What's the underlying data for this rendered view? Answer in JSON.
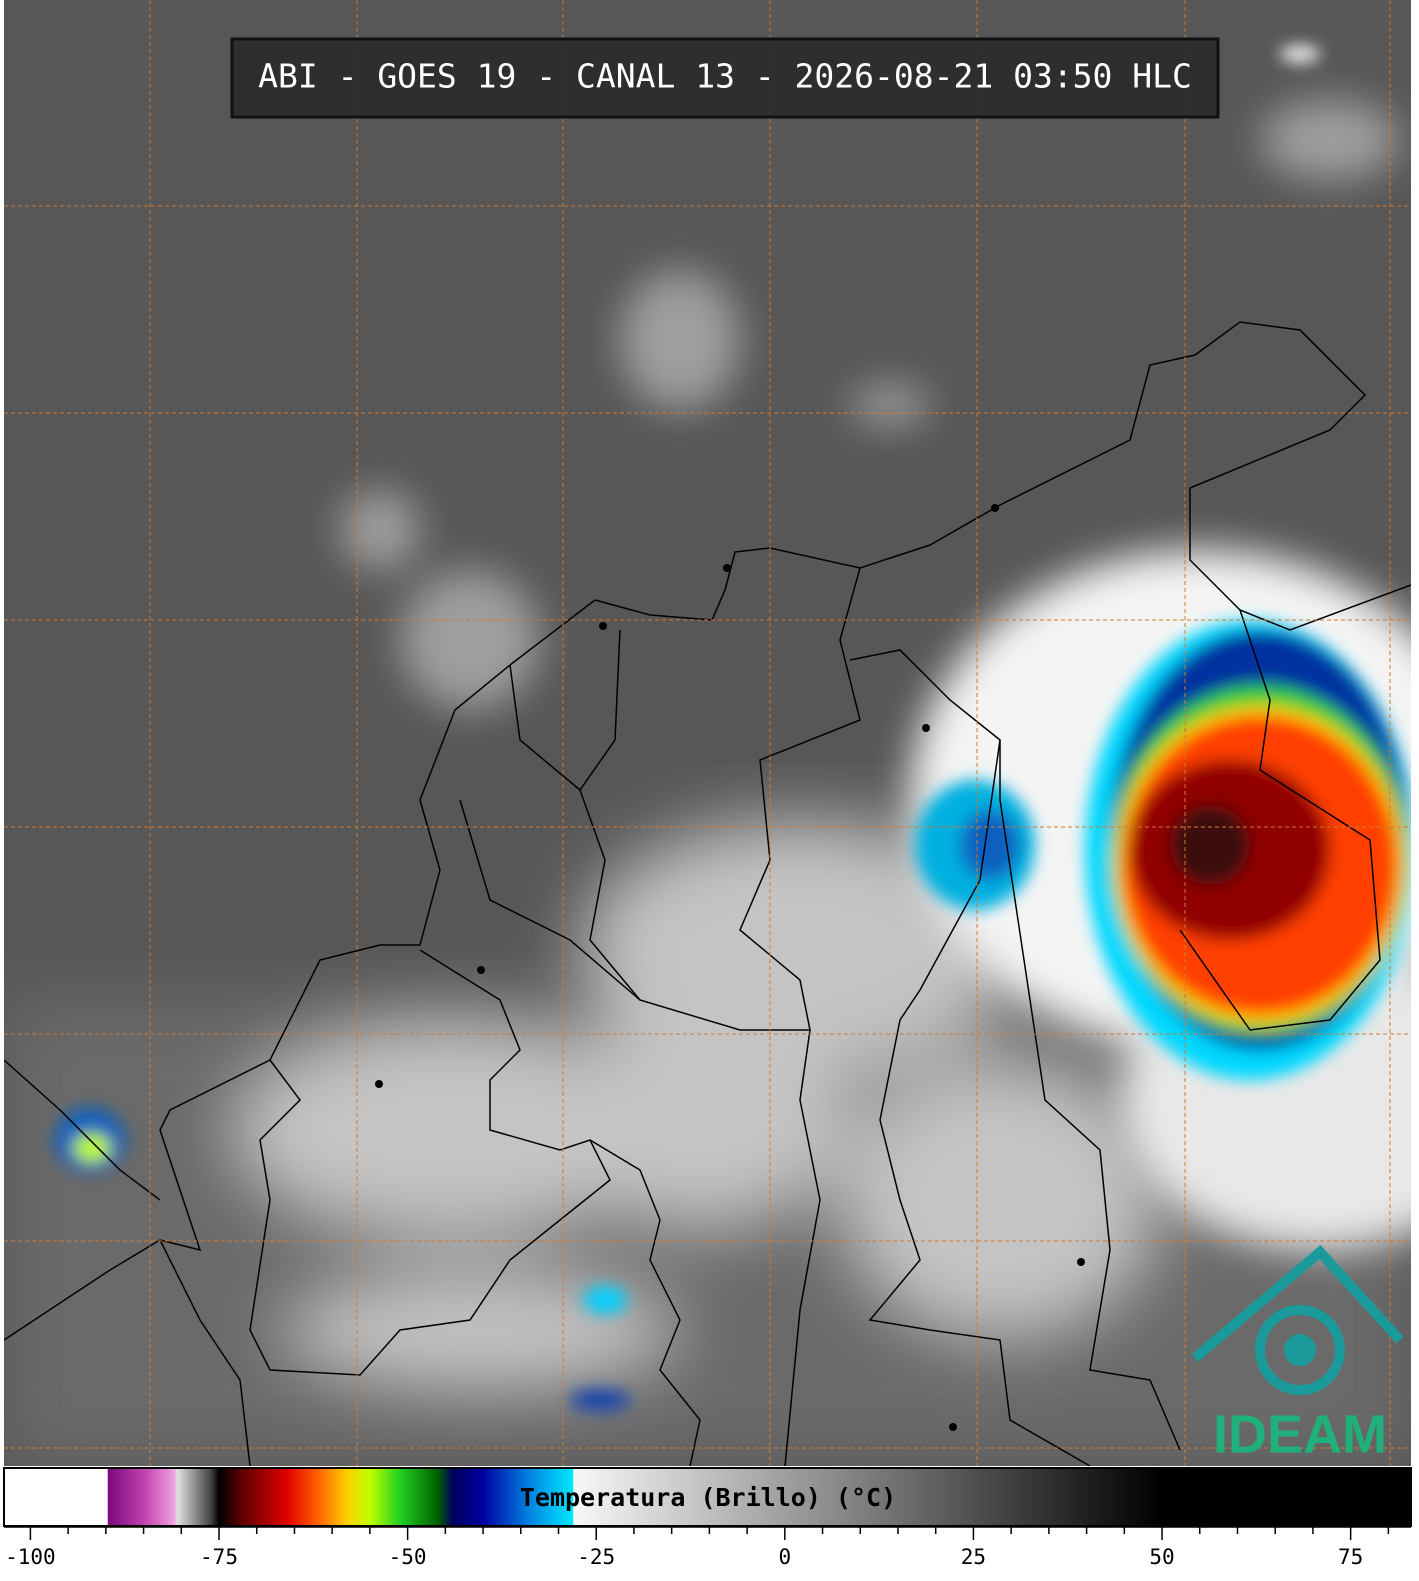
{
  "header": {
    "title": "ABI - GOES 19 - CANAL 13 - 2026-08-21 03:50 HLC"
  },
  "colorbar": {
    "label": "Temperatura (Brillo) (°C)",
    "lim": [
      -103.5,
      83
    ],
    "ticks": [
      -100,
      -75,
      -50,
      -25,
      0,
      25,
      50,
      75
    ],
    "minor_ticks": [
      -95,
      -90,
      -85,
      -80,
      -70,
      -65,
      -60,
      -55,
      -45,
      -40,
      -35,
      -30,
      -20,
      -15,
      -10,
      -5,
      5,
      10,
      15,
      20,
      30,
      35,
      40,
      45,
      55,
      60,
      65,
      70,
      80
    ],
    "colormap": [
      [
        -103.5,
        "#ffffff"
      ],
      [
        -89.8,
        "#ffffff"
      ],
      [
        -89.7,
        "#7a0a7a"
      ],
      [
        -85,
        "#c040b0"
      ],
      [
        -81,
        "#f0a0e0"
      ],
      [
        -80.5,
        "#e0e0e0"
      ],
      [
        -76,
        "#404040"
      ],
      [
        -75,
        "#000000"
      ],
      [
        -72,
        "#600000"
      ],
      [
        -66,
        "#e00000"
      ],
      [
        -62,
        "#ff6000"
      ],
      [
        -58,
        "#ffd000"
      ],
      [
        -55,
        "#c0ff00"
      ],
      [
        -51,
        "#20d020"
      ],
      [
        -46,
        "#006000"
      ],
      [
        -44,
        "#000060"
      ],
      [
        -40,
        "#0000a0"
      ],
      [
        -34,
        "#0080e0"
      ],
      [
        -28.1,
        "#00e8ff"
      ],
      [
        -28,
        "#f8f8f8"
      ],
      [
        50,
        "#000000"
      ],
      [
        83,
        "#000000"
      ]
    ]
  },
  "logo": {
    "text": "IDEAM"
  }
}
